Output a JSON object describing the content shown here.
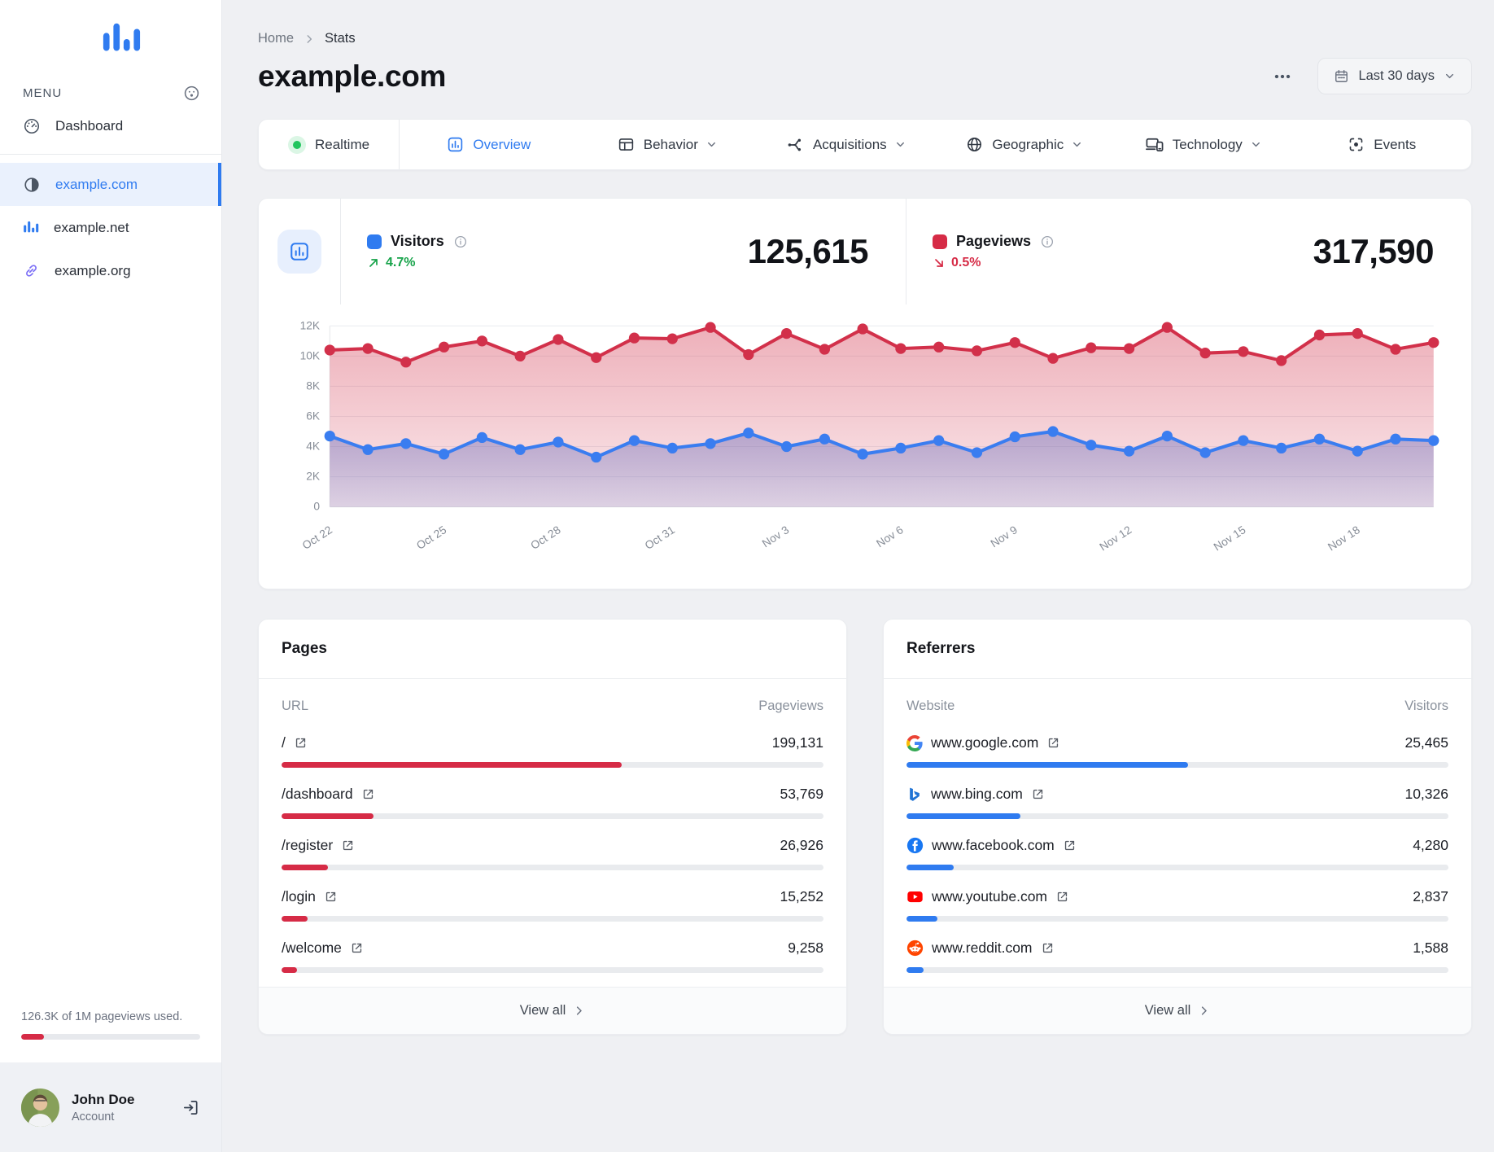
{
  "sidebar": {
    "menu_label": "MENU",
    "dashboard_label": "Dashboard",
    "sites": [
      {
        "label": "example.com",
        "icon": "favicon-contrast",
        "active": true
      },
      {
        "label": "example.net",
        "icon": "bar-chart",
        "active": false
      },
      {
        "label": "example.org",
        "icon": "link",
        "active": false
      }
    ],
    "usage": {
      "text": "126.3K of 1M pageviews used.",
      "percent": 12.6,
      "bar_color": "#d62b46"
    },
    "user": {
      "name": "John Doe",
      "subtitle": "Account"
    }
  },
  "header": {
    "breadcrumb": [
      "Home",
      "Stats"
    ],
    "title": "example.com",
    "date_range": "Last 30 days"
  },
  "tabs": [
    {
      "label": "Realtime",
      "icon": "realtime",
      "dropdown": false,
      "active": false
    },
    {
      "label": "Overview",
      "icon": "overview",
      "dropdown": false,
      "active": true
    },
    {
      "label": "Behavior",
      "icon": "behavior",
      "dropdown": true,
      "active": false
    },
    {
      "label": "Acquisitions",
      "icon": "acquisitions",
      "dropdown": true,
      "active": false
    },
    {
      "label": "Geographic",
      "icon": "geographic",
      "dropdown": true,
      "active": false
    },
    {
      "label": "Technology",
      "icon": "technology",
      "dropdown": true,
      "active": false
    },
    {
      "label": "Events",
      "icon": "events",
      "dropdown": false,
      "active": false
    }
  ],
  "stats": {
    "visitors": {
      "label": "Visitors",
      "value": "125,615",
      "change": "4.7%",
      "trend": "up",
      "color": "#2f7bf0"
    },
    "pageviews": {
      "label": "Pageviews",
      "value": "317,590",
      "change": "0.5%",
      "trend": "down",
      "color": "#d62b46"
    }
  },
  "chart_data": {
    "type": "area",
    "title": "",
    "xlabel": "",
    "ylabel": "",
    "grid": true,
    "legend_position": "none",
    "ylim": [
      0,
      12000
    ],
    "y_ticks": [
      "0",
      "2K",
      "4K",
      "6K",
      "8K",
      "10K",
      "12K"
    ],
    "x_labels": [
      "Oct 22",
      "Oct 25",
      "Oct 28",
      "Oct 31",
      "Nov 3",
      "Nov 6",
      "Nov 9",
      "Nov 12",
      "Nov 15",
      "Nov 18"
    ],
    "label_every": 3,
    "series": [
      {
        "name": "Pageviews",
        "color": "#d2304a",
        "values": [
          10400,
          10500,
          9600,
          10600,
          11000,
          10000,
          11100,
          9900,
          11200,
          11150,
          11900,
          10100,
          11500,
          10450,
          11800,
          10500,
          10600,
          10350,
          10900,
          9850,
          10550,
          10500,
          11900,
          10200,
          10300,
          9700,
          11400,
          11500,
          10450,
          10900
        ]
      },
      {
        "name": "Visitors",
        "color": "#3a7df0",
        "values": [
          4700,
          3800,
          4200,
          3500,
          4600,
          3800,
          4300,
          3300,
          4400,
          3900,
          4200,
          4900,
          4000,
          4500,
          3500,
          3900,
          4400,
          3600,
          4650,
          5000,
          4100,
          3700,
          4700,
          3600,
          4400,
          3900,
          4500,
          3700,
          4500,
          4400
        ]
      }
    ]
  },
  "pages_card": {
    "title": "Pages",
    "col_label": "URL",
    "col_value": "Pageviews",
    "view_all": "View all",
    "bar_color": "#d62b46",
    "rows": [
      {
        "label": "/",
        "value": "199,131",
        "percent": 62.7
      },
      {
        "label": "/dashboard",
        "value": "53,769",
        "percent": 16.9
      },
      {
        "label": "/register",
        "value": "26,926",
        "percent": 8.5
      },
      {
        "label": "/login",
        "value": "15,252",
        "percent": 4.8
      },
      {
        "label": "/welcome",
        "value": "9,258",
        "percent": 2.9
      }
    ]
  },
  "referrers_card": {
    "title": "Referrers",
    "col_label": "Website",
    "col_value": "Visitors",
    "view_all": "View all",
    "bar_color": "#2f7bf0",
    "rows": [
      {
        "label": "www.google.com",
        "icon": "google",
        "value": "25,465",
        "percent": 52
      },
      {
        "label": "www.bing.com",
        "icon": "bing",
        "value": "10,326",
        "percent": 21
      },
      {
        "label": "www.facebook.com",
        "icon": "facebook",
        "value": "4,280",
        "percent": 8.7
      },
      {
        "label": "www.youtube.com",
        "icon": "youtube",
        "value": "2,837",
        "percent": 5.7
      },
      {
        "label": "www.reddit.com",
        "icon": "reddit",
        "value": "1,588",
        "percent": 3.2
      }
    ]
  }
}
